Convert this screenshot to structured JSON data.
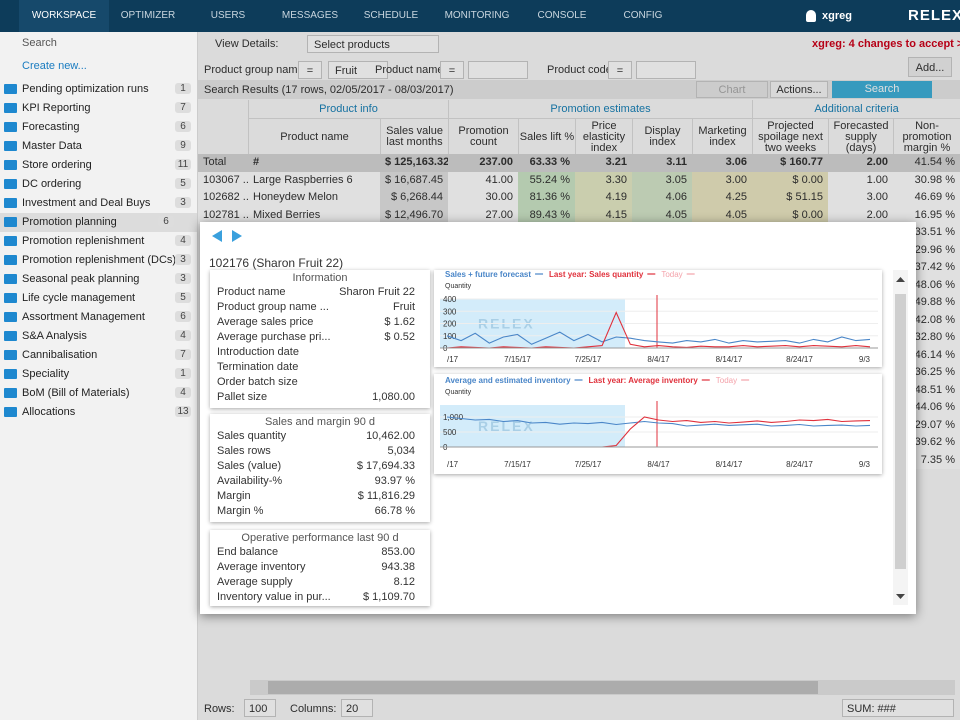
{
  "nav": {
    "items": [
      "WORKSPACE",
      "OPTIMIZER",
      "USERS",
      "MESSAGES",
      "SCHEDULE",
      "MONITORING",
      "CONSOLE",
      "CONFIG"
    ],
    "user": "xgreg",
    "logo": "RELEX"
  },
  "sidebar": {
    "search": "Search",
    "create": "Create new...",
    "items": [
      {
        "label": "Pending optimization runs",
        "count": 1
      },
      {
        "label": "KPI Reporting",
        "count": 7
      },
      {
        "label": "Forecasting",
        "count": 6
      },
      {
        "label": "Master Data",
        "count": 9
      },
      {
        "label": "Store ordering",
        "count": 11
      },
      {
        "label": "DC ordering",
        "count": 5
      },
      {
        "label": "Investment and Deal Buys",
        "count": 3
      },
      {
        "label": "Promotion planning",
        "count": 6,
        "selected": true
      },
      {
        "label": "Promotion replenishment",
        "count": 4
      },
      {
        "label": "Promotion replenishment (DCs)",
        "count": 3
      },
      {
        "label": "Seasonal peak planning",
        "count": 3
      },
      {
        "label": "Life cycle management",
        "count": 5
      },
      {
        "label": "Assortment Management",
        "count": 6
      },
      {
        "label": "S&A Analysis",
        "count": 4
      },
      {
        "label": "Cannibalisation",
        "count": 7
      },
      {
        "label": "Speciality",
        "count": 1
      },
      {
        "label": "BoM (Bill of Materials)",
        "count": 4
      },
      {
        "label": "Allocations",
        "count": 13
      }
    ]
  },
  "toolbar": {
    "view_details": "View Details:",
    "select": "Select products",
    "changes": "xgreg: 4 changes to accept >"
  },
  "filters": {
    "items": [
      {
        "field": "Product group nam...",
        "op": "=",
        "value": "Fruit"
      },
      {
        "field": "Product name",
        "op": "="
      },
      {
        "field": "Product code",
        "op": "="
      }
    ],
    "add": "Add..."
  },
  "results": {
    "summary": "Search Results  (17 rows, 02/05/2017 - 08/03/2017)",
    "chart": "Chart",
    "actions": "Actions...",
    "search": "Search"
  },
  "table": {
    "groups": [
      "Product info",
      "Promotion estimates",
      "Additional criteria"
    ],
    "columns": [
      "Product name",
      "Sales value last months",
      "Promotion count",
      "Sales lift %",
      "Price elasticity index",
      "Display index",
      "Marketing index",
      "Projected spoilage next two weeks",
      "Forecasted supply (days)",
      "Non-promotion margin %"
    ],
    "rows": [
      [
        "Total",
        "#",
        "$ 125,163.32",
        "237.00",
        "63.33 %",
        "3.21",
        "3.11",
        "3.06",
        "$ 160.77",
        "2.00",
        "41.54 %"
      ],
      [
        "103067 ...",
        "Large Raspberries 6",
        "$ 16,687.45",
        "41.00",
        "55.24 %",
        "3.30",
        "3.05",
        "3.00",
        "$ 0.00",
        "1.00",
        "30.98 %"
      ],
      [
        "102682 ...",
        "Honeydew Melon",
        "$ 6,268.44",
        "30.00",
        "81.36 %",
        "4.19",
        "4.06",
        "4.25",
        "$ 51.15",
        "3.00",
        "46.69 %"
      ],
      [
        "102781 ...",
        "Mixed Berries",
        "$ 12,496.70",
        "27.00",
        "89.43 %",
        "4.15",
        "4.05",
        "4.05",
        "$ 0.00",
        "2.00",
        "16.95 %"
      ]
    ],
    "hidden_row_margins": [
      "33.51 %",
      "29.96 %",
      "37.42 %",
      "48.06 %",
      "49.88 %",
      "42.08 %",
      "32.80 %",
      "46.14 %",
      "36.25 %",
      "48.51 %",
      "44.06 %",
      "29.07 %",
      "39.62 %",
      "7.35 %"
    ]
  },
  "footer": {
    "rows_label": "Rows:",
    "rows": "100",
    "columns_label": "Columns:",
    "columns": "20",
    "sum": "SUM: ###"
  },
  "popup": {
    "title": "102176 (Sharon Fruit 22)",
    "sections": [
      {
        "title": "Information",
        "rows": [
          [
            "Product name",
            "Sharon Fruit 22"
          ],
          [
            "Product group name ...",
            "Fruit"
          ],
          [
            "Average sales price",
            "$ 1.62"
          ],
          [
            "Average purchase pri...",
            "$ 0.52"
          ],
          [
            "Introduction date"
          ],
          [
            "Termination date"
          ],
          [
            "Order batch size"
          ],
          [
            "Pallet size",
            "1,080.00"
          ]
        ]
      },
      {
        "title": "Sales and margin 90 d",
        "rows": [
          [
            "Sales quantity",
            "10,462.00"
          ],
          [
            "Sales rows",
            "5,034"
          ],
          [
            "Sales (value)",
            "$ 17,694.33"
          ],
          [
            "Availability-%",
            "93.97 %"
          ],
          [
            "Margin",
            "$ 11,816.29"
          ],
          [
            "Margin %",
            "66.78 %"
          ]
        ]
      },
      {
        "title": "Operative performance last 90 d",
        "rows": [
          [
            "End balance",
            "853.00"
          ],
          [
            "Average inventory",
            "943.38"
          ],
          [
            "Average supply",
            "8.12"
          ],
          [
            "Inventory value in pur...",
            "$ 1,109.70"
          ]
        ]
      }
    ]
  },
  "chart_data": [
    {
      "type": "line",
      "y_label": "Quantity",
      "watermark": "RELEX",
      "grid": true,
      "categories": [
        "/17",
        null,
        null,
        null,
        null,
        "7/15/17",
        null,
        null,
        null,
        null,
        "7/25/17",
        null,
        null,
        null,
        null,
        "8/4/17",
        null,
        null,
        null,
        null,
        "8/14/17",
        null,
        null,
        null,
        null,
        "8/24/17",
        null,
        null,
        null,
        null,
        "9/3"
      ],
      "ylim": [
        0,
        400
      ],
      "yticks": [
        0,
        100,
        200,
        300,
        400
      ],
      "series": [
        {
          "name": "Sales + future forecast",
          "color": "#4a86c8",
          "values": [
            100,
            60,
            120,
            40,
            90,
            110,
            30,
            80,
            130,
            60,
            110,
            50,
            90,
            80,
            60,
            50,
            40,
            60,
            50,
            70,
            40,
            60,
            50,
            55,
            60,
            40,
            70,
            50,
            90,
            60,
            70
          ]
        },
        {
          "name": "Last year: Sales quantity",
          "color": "#e0313c",
          "values": [
            0,
            10,
            5,
            0,
            10,
            5,
            0,
            10,
            5,
            0,
            10,
            20,
            290,
            30,
            10,
            20,
            10,
            5,
            15,
            10,
            10,
            20,
            10,
            15,
            20,
            10,
            20,
            15,
            10,
            20,
            10
          ]
        }
      ],
      "today": {
        "name": "Today",
        "color": "#f4a3ab"
      }
    },
    {
      "type": "line",
      "y_label": "Quantity",
      "watermark": "RELEX",
      "grid": true,
      "categories": [
        "/17",
        null,
        null,
        null,
        null,
        "7/15/17",
        null,
        null,
        null,
        null,
        "7/25/17",
        null,
        null,
        null,
        null,
        "8/4/17",
        null,
        null,
        null,
        null,
        "8/14/17",
        null,
        null,
        null,
        null,
        "8/24/17",
        null,
        null,
        null,
        null,
        "9/3"
      ],
      "ylim": [
        0,
        1400
      ],
      "yticks": [
        0,
        500,
        {
          "value": 1000,
          "label": "1,000"
        }
      ],
      "series": [
        {
          "name": "Average and estimated inventory",
          "color": "#4a86c8",
          "values": [
            1000,
            950,
            900,
            920,
            850,
            880,
            800,
            820,
            760,
            800,
            780,
            820,
            750,
            800,
            850,
            800,
            780,
            700,
            730,
            760,
            720,
            740,
            760,
            700,
            720,
            750,
            700,
            720,
            730,
            700,
            720
          ]
        },
        {
          "name": "Last year: Average inventory",
          "color": "#e0313c",
          "values": [
            0,
            0,
            0,
            0,
            0,
            0,
            0,
            0,
            0,
            0,
            0,
            0,
            50,
            600,
            1000,
            900,
            850,
            880,
            820,
            850,
            800,
            830,
            870,
            820,
            850,
            900,
            880,
            920,
            850,
            870,
            880
          ]
        }
      ],
      "today": {
        "name": "Today",
        "color": "#f4a3ab"
      }
    }
  ]
}
